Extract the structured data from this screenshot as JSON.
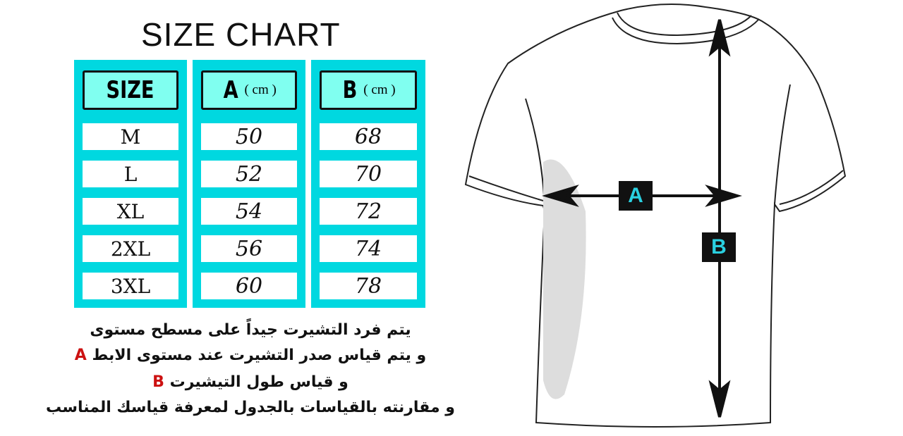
{
  "title": "SIZE CHART",
  "headers": {
    "size": "SIZE",
    "a": "A",
    "b": "B",
    "unit": "( cm )"
  },
  "rows": [
    {
      "size": "M",
      "a": "50",
      "b": "68"
    },
    {
      "size": "L",
      "a": "52",
      "b": "70"
    },
    {
      "size": "XL",
      "a": "54",
      "b": "72"
    },
    {
      "size": "2XL",
      "a": "56",
      "b": "74"
    },
    {
      "size": "3XL",
      "a": "60",
      "b": "78"
    }
  ],
  "instructions": {
    "line1": "يتم فرد التشيرت جيداً على مسطح مستوى",
    "line2": "و يتم قياس صدر التشيرت عند مستوى الابط",
    "line2_marker": "A",
    "line3": "و قياس طول التيشيرت",
    "line3_marker": "B",
    "line4": "و مقارنته بالقياسات بالجدول لمعرفة قياسك المناسب"
  },
  "diagram": {
    "label_a": "A",
    "label_b": "B"
  },
  "colors": {
    "table": "#00d8e0",
    "header": "#80fff0",
    "marker": "#cc1111",
    "label_text": "#2ad0e0"
  }
}
